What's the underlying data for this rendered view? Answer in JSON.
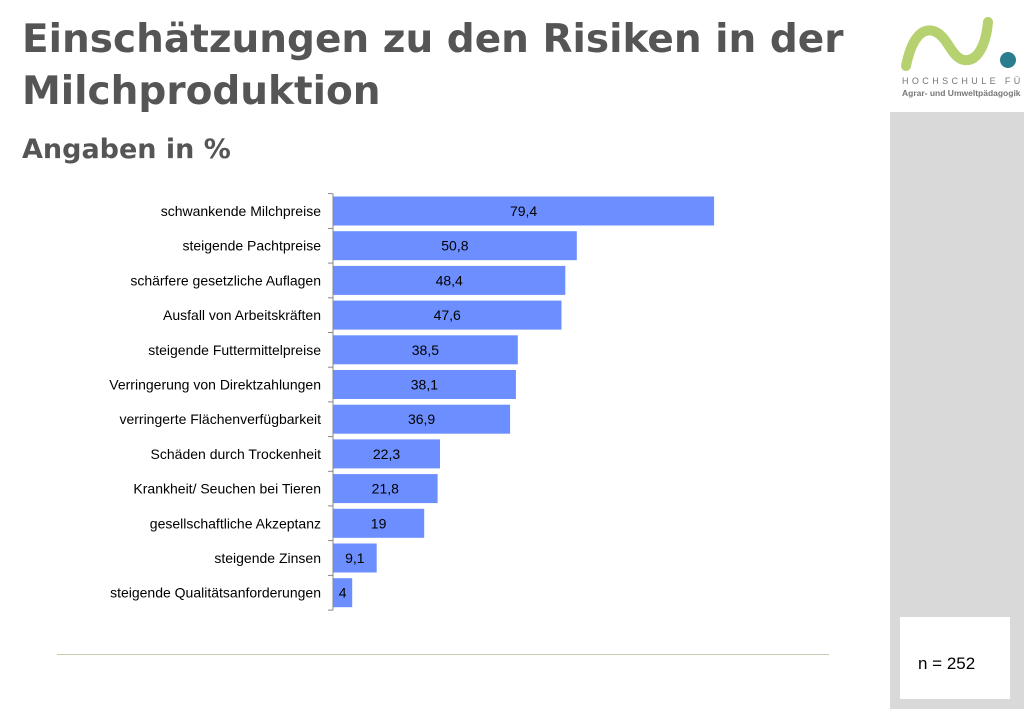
{
  "header": {
    "title": "Einschätzungen zu den Risiken in der Milchproduktion",
    "subtitle": "Angaben in %"
  },
  "logo": {
    "line1": "HOCHSCHULE FÜR",
    "line2": "Agrar- und Umweltpädagogik"
  },
  "sample": {
    "label": "n = 252"
  },
  "colors": {
    "bar": "#6C8EFF",
    "title": "#555555",
    "logo_green": "#B5D170",
    "logo_teal": "#2A7D8C"
  },
  "chart_data": {
    "type": "bar",
    "orientation": "horizontal",
    "title": "",
    "xlabel": "",
    "ylabel": "",
    "xlim": [
      0,
      100
    ],
    "grid": false,
    "categories": [
      "schwankende Milchpreise",
      "steigende Pachtpreise",
      "schärfere gesetzliche Auflagen",
      "Ausfall von Arbeitskräften",
      "steigende Futtermittelpreise",
      "Verringerung von Direktzahlungen",
      "verringerte Flächenverfügbarkeit",
      "Schäden durch Trockenheit",
      "Krankheit/ Seuchen bei Tieren",
      "gesellschaftliche Akzeptanz",
      "steigende Zinsen",
      "steigende Qualitätsanforderungen"
    ],
    "values": [
      79.4,
      50.8,
      48.4,
      47.6,
      38.5,
      38.1,
      36.9,
      22.3,
      21.8,
      19,
      9.1,
      4
    ],
    "labels": [
      "79,4",
      "50,8",
      "48,4",
      "47,6",
      "38,5",
      "38,1",
      "36,9",
      "22,3",
      "21,8",
      "19",
      "9,1",
      "4"
    ]
  }
}
